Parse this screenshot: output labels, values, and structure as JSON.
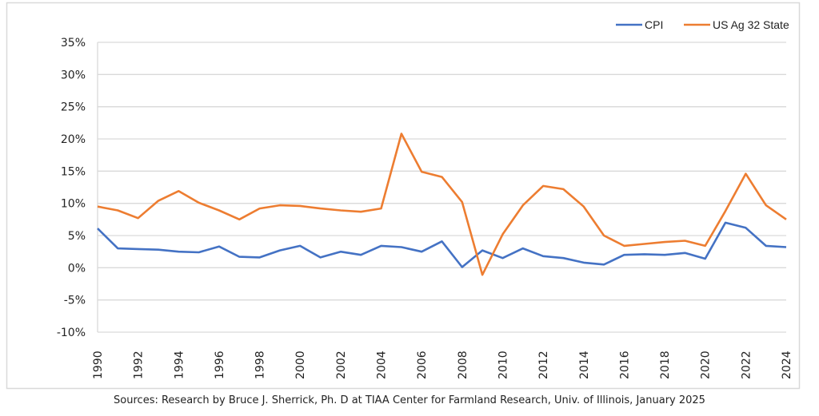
{
  "chart_data": {
    "type": "line",
    "title": "",
    "xlabel": "",
    "ylabel": "",
    "ylim": [
      -10,
      35
    ],
    "yticks": [
      -10,
      -5,
      0,
      5,
      10,
      15,
      20,
      25,
      30,
      35
    ],
    "ytick_format": "percent",
    "grid": true,
    "legend": "top-right",
    "x": [
      1990,
      1991,
      1992,
      1993,
      1994,
      1995,
      1996,
      1997,
      1998,
      1999,
      2000,
      2001,
      2002,
      2003,
      2004,
      2005,
      2006,
      2007,
      2008,
      2009,
      2010,
      2011,
      2012,
      2013,
      2014,
      2015,
      2016,
      2017,
      2018,
      2019,
      2020,
      2021,
      2022,
      2023,
      2024
    ],
    "xticks": [
      1990,
      1992,
      1994,
      1996,
      1998,
      2000,
      2002,
      2004,
      2006,
      2008,
      2010,
      2012,
      2014,
      2016,
      2018,
      2020,
      2022,
      2024
    ],
    "series": [
      {
        "name": "CPI",
        "color": "#4472C4",
        "values": [
          6.1,
          3.0,
          2.9,
          2.8,
          2.5,
          2.4,
          3.3,
          1.7,
          1.6,
          2.7,
          3.4,
          1.6,
          2.5,
          2.0,
          3.4,
          3.2,
          2.5,
          4.1,
          0.1,
          2.7,
          1.5,
          3.0,
          1.8,
          1.5,
          0.8,
          0.5,
          2.0,
          2.1,
          2.0,
          2.3,
          1.4,
          7.0,
          6.2,
          3.4,
          3.2
        ]
      },
      {
        "name": "US Ag 32 State",
        "color": "#ED7D31",
        "values": [
          9.5,
          8.9,
          7.7,
          10.4,
          11.9,
          10.1,
          8.9,
          7.5,
          9.2,
          9.7,
          9.6,
          9.2,
          8.9,
          8.7,
          9.2,
          20.8,
          14.9,
          14.1,
          10.2,
          -1.1,
          5.2,
          9.7,
          12.7,
          12.2,
          9.5,
          5.0,
          3.4,
          3.7,
          4.0,
          4.2,
          3.4,
          8.8,
          14.6,
          9.7,
          7.5
        ]
      }
    ]
  },
  "source": "Sources: Research by Bruce J. Sherrick, Ph. D at TIAA Center for Farmland Research, Univ. of Illinois, January 2025"
}
